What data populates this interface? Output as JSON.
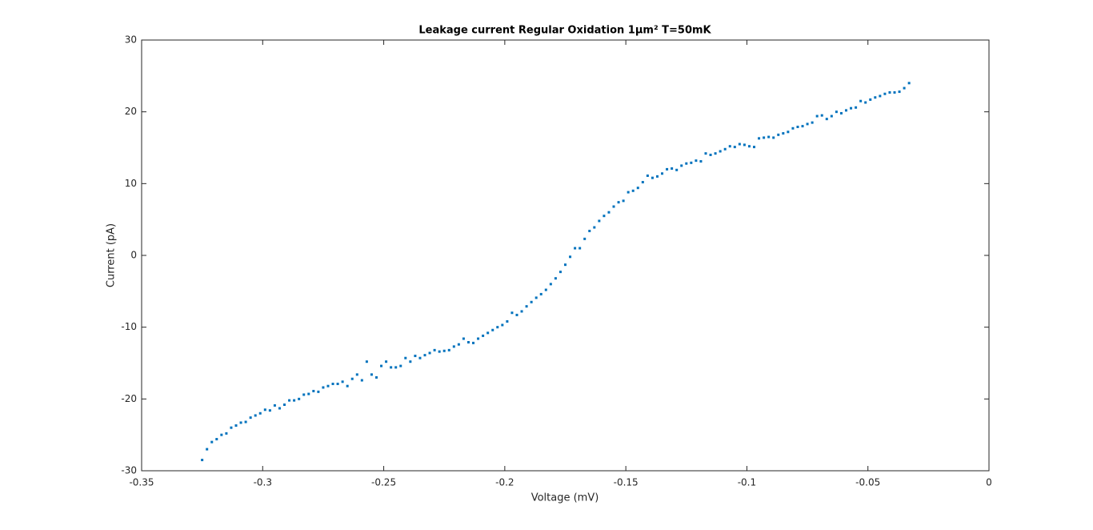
{
  "chart_data": {
    "type": "scatter",
    "title": "Leakage current Regular Oxidation 1µm² T=50mK",
    "x_label": "Voltage (mV)",
    "y_label": "Current (pA)",
    "xlim": [
      -0.35,
      0
    ],
    "xticks": [
      -0.35,
      -0.3,
      -0.25,
      -0.2,
      -0.15,
      -0.1,
      -0.05,
      0
    ],
    "ylim": [
      -30,
      30
    ],
    "yticks": [
      -30,
      -20,
      -10,
      0,
      10,
      20,
      30
    ],
    "color": "#0072bd",
    "x": [
      -0.325,
      -0.323,
      -0.321,
      -0.319,
      -0.317,
      -0.315,
      -0.313,
      -0.311,
      -0.309,
      -0.307,
      -0.305,
      -0.303,
      -0.301,
      -0.299,
      -0.297,
      -0.295,
      -0.293,
      -0.291,
      -0.289,
      -0.287,
      -0.285,
      -0.283,
      -0.281,
      -0.279,
      -0.277,
      -0.275,
      -0.273,
      -0.271,
      -0.269,
      -0.267,
      -0.265,
      -0.263,
      -0.261,
      -0.259,
      -0.257,
      -0.255,
      -0.253,
      -0.251,
      -0.249,
      -0.247,
      -0.245,
      -0.243,
      -0.241,
      -0.239,
      -0.237,
      -0.235,
      -0.233,
      -0.231,
      -0.229,
      -0.227,
      -0.225,
      -0.223,
      -0.221,
      -0.219,
      -0.217,
      -0.215,
      -0.213,
      -0.211,
      -0.209,
      -0.207,
      -0.205,
      -0.203,
      -0.201,
      -0.199,
      -0.197,
      -0.195,
      -0.193,
      -0.191,
      -0.189,
      -0.187,
      -0.185,
      -0.183,
      -0.181,
      -0.179,
      -0.177,
      -0.175,
      -0.173,
      -0.171,
      -0.169,
      -0.167,
      -0.165,
      -0.163,
      -0.161,
      -0.159,
      -0.157,
      -0.155,
      -0.153,
      -0.151,
      -0.149,
      -0.147,
      -0.145,
      -0.143,
      -0.141,
      -0.139,
      -0.137,
      -0.135,
      -0.133,
      -0.131,
      -0.129,
      -0.127,
      -0.125,
      -0.123,
      -0.121,
      -0.119,
      -0.117,
      -0.115,
      -0.113,
      -0.111,
      -0.109,
      -0.107,
      -0.105,
      -0.103,
      -0.101,
      -0.099,
      -0.097,
      -0.095,
      -0.093,
      -0.091,
      -0.089,
      -0.087,
      -0.085,
      -0.083,
      -0.081,
      -0.079,
      -0.077,
      -0.075,
      -0.073,
      -0.071,
      -0.069,
      -0.067,
      -0.065,
      -0.063,
      -0.061,
      -0.059,
      -0.057,
      -0.055,
      -0.053,
      -0.051,
      -0.049,
      -0.047,
      -0.045,
      -0.043,
      -0.041,
      -0.039,
      -0.037,
      -0.035,
      -0.033
    ],
    "values": [
      -28.5,
      -27,
      -26,
      -25.6,
      -25,
      -24.8,
      -24,
      -23.7,
      -23.3,
      -23.2,
      -22.6,
      -22.3,
      -22,
      -21.5,
      -21.6,
      -20.9,
      -21.3,
      -20.8,
      -20.2,
      -20.2,
      -20,
      -19.4,
      -19.3,
      -18.9,
      -19,
      -18.4,
      -18.2,
      -17.9,
      -17.9,
      -17.6,
      -18.2,
      -17.2,
      -16.6,
      -17.4,
      -14.8,
      -16.6,
      -17,
      -15.4,
      -14.8,
      -15.6,
      -15.6,
      -15.4,
      -14.3,
      -14.8,
      -14,
      -14.3,
      -13.9,
      -13.6,
      -13.2,
      -13.4,
      -13.3,
      -13.2,
      -12.7,
      -12.4,
      -11.6,
      -12.1,
      -12.2,
      -11.6,
      -11.2,
      -10.8,
      -10.4,
      -10,
      -9.7,
      -9.2,
      -8,
      -8.3,
      -7.8,
      -7.1,
      -6.5,
      -5.9,
      -5.4,
      -4.8,
      -4,
      -3.2,
      -2.3,
      -1.3,
      -0.2,
      1,
      1,
      2.3,
      3.4,
      3.9,
      4.8,
      5.5,
      6,
      6.8,
      7.4,
      7.6,
      8.8,
      9,
      9.4,
      10.2,
      11.1,
      10.8,
      11,
      11.4,
      12,
      12.1,
      11.9,
      12.5,
      12.8,
      12.9,
      13.2,
      13.1,
      14.2,
      14,
      14.2,
      14.5,
      14.8,
      15.2,
      15.1,
      15.5,
      15.4,
      15.2,
      15.1,
      16.3,
      16.4,
      16.5,
      16.4,
      16.8,
      17,
      17.2,
      17.7,
      17.9,
      18,
      18.3,
      18.5,
      19.4,
      19.5,
      19,
      19.4,
      20,
      19.8,
      20.2,
      20.5,
      20.6,
      21.5,
      21.3,
      21.7,
      22,
      22.2,
      22.5,
      22.7,
      22.7,
      22.8,
      23.3,
      24
    ]
  }
}
